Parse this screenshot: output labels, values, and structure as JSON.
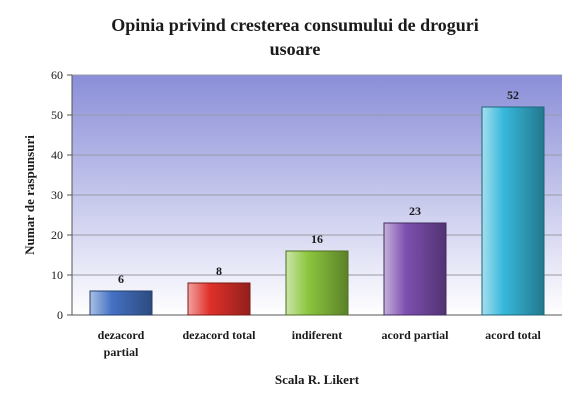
{
  "chart_data": {
    "type": "bar",
    "title_lines": [
      "Opinia privind cresterea consumului de droguri",
      "usoare"
    ],
    "xlabel": "Scala R. Likert",
    "ylabel": "Numar de raspunsuri",
    "ylim": [
      0,
      60
    ],
    "yticks": [
      0,
      10,
      20,
      30,
      40,
      50,
      60
    ],
    "grid": true,
    "categories": [
      [
        "dezacord",
        "partial"
      ],
      [
        "dezacord total"
      ],
      [
        "indiferent"
      ],
      [
        "acord partial"
      ],
      [
        "acord total"
      ]
    ],
    "values": [
      6,
      8,
      16,
      23,
      52
    ],
    "colors": [
      "#4472c4",
      "#e0302a",
      "#8cc63e",
      "#7d4fb0",
      "#36b8da"
    ],
    "background_gradient": [
      "#8a8ed8",
      "#ffffff"
    ]
  }
}
